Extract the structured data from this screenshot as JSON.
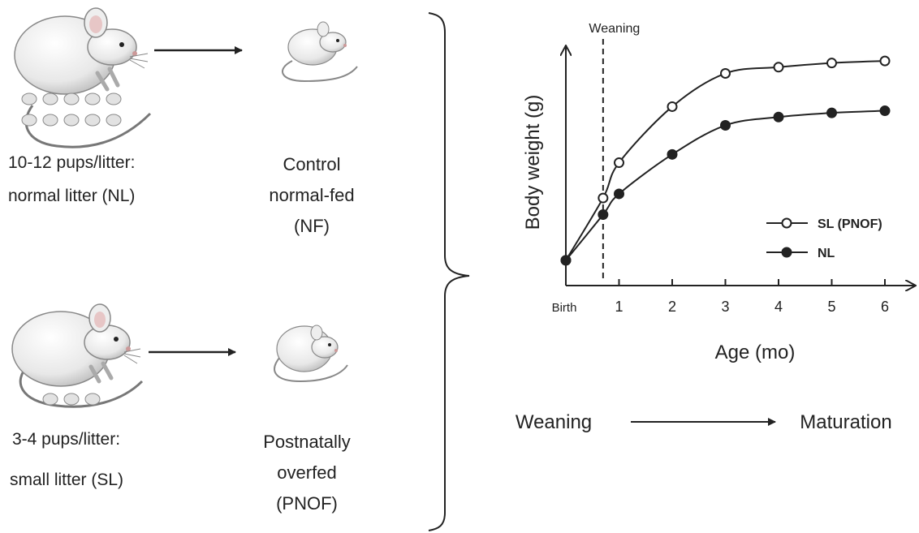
{
  "left": {
    "normal": {
      "pups_line1": "10-12 pups/litter:",
      "pups_line2": "normal litter (NL)",
      "group_line1": "Control",
      "group_line2": "normal-fed",
      "group_line3": "(NF)"
    },
    "small": {
      "pups_line1": "3-4 pups/litter:",
      "pups_line2": "small litter (SL)",
      "group_line1": "Postnatally",
      "group_line2": "overfed",
      "group_line3": "(PNOF)"
    }
  },
  "chart_data": {
    "type": "line",
    "title": "",
    "xlabel": "Age (mo)",
    "ylabel": "Body weight (g)",
    "x_tick_labels": [
      "Birth",
      "1",
      "2",
      "3",
      "4",
      "5",
      "6"
    ],
    "xlim": [
      0,
      6.3
    ],
    "ylim": [
      0,
      1
    ],
    "annotations": {
      "weaning_label": "Weaning",
      "weaning_x": 0.7
    },
    "legend_position": "right",
    "series": [
      {
        "name": "SL (PNOF)",
        "marker": "open-circle",
        "color": "#222222",
        "x": [
          0,
          0.7,
          1,
          2,
          3,
          4,
          5,
          6
        ],
        "y": [
          0.02,
          0.32,
          0.49,
          0.76,
          0.92,
          0.95,
          0.97,
          0.98
        ]
      },
      {
        "name": "NL",
        "marker": "filled-circle",
        "color": "#222222",
        "x": [
          0,
          0.7,
          1,
          2,
          3,
          4,
          5,
          6
        ],
        "y": [
          0.02,
          0.24,
          0.34,
          0.53,
          0.67,
          0.71,
          0.73,
          0.74
        ]
      }
    ]
  },
  "bottom": {
    "from": "Weaning",
    "to": "Maturation"
  }
}
